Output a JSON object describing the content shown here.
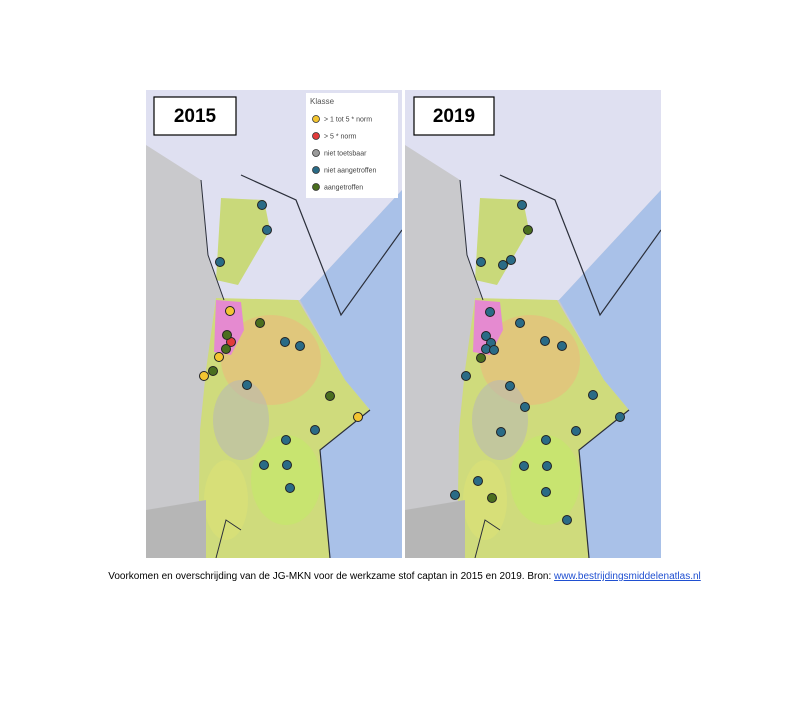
{
  "panels": [
    {
      "year": "2015"
    },
    {
      "year": "2019"
    }
  ],
  "legend": {
    "title": "Klasse",
    "items": [
      "> 1 tot 5 * norm",
      "> 5 * norm",
      "niet toetsbaar",
      "niet aangetroffen",
      "aangetroffen"
    ]
  },
  "caption": {
    "text": "Voorkomen en overschrijding van de JG-MKN voor de werkzame stof captan in 2015 en 2019. Bron:",
    "link": "www.bestrijdingsmiddelenatlas.nl"
  }
}
